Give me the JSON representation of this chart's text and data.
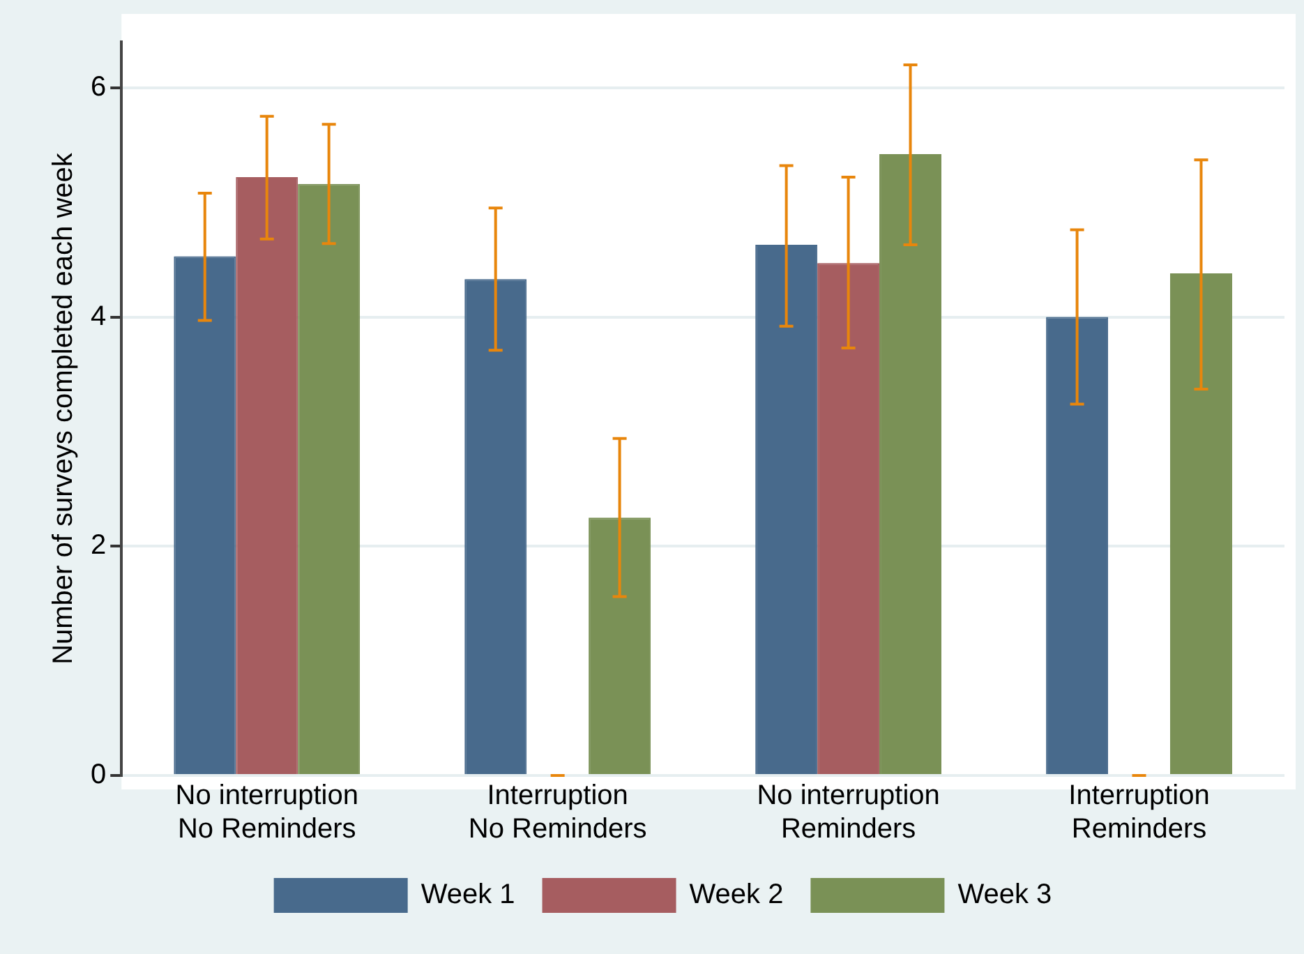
{
  "chart_data": {
    "type": "bar",
    "ylabel": "Number of surveys completed each week",
    "categories": [
      "No interruption\nNo Reminders",
      "Interruption\nNo Reminders",
      "No interruption\nReminders",
      "Interruption\nReminders"
    ],
    "series": [
      {
        "name": "Week 1",
        "color": "#486a8c",
        "values": [
          4.53,
          4.33,
          4.63,
          4.0
        ],
        "errors": [
          [
            3.97,
            5.08
          ],
          [
            3.71,
            4.95
          ],
          [
            3.92,
            5.32
          ],
          [
            3.24,
            4.76
          ]
        ]
      },
      {
        "name": "Week 2",
        "color": "#a65d60",
        "values": [
          5.22,
          0,
          4.47,
          0
        ],
        "errors": [
          [
            4.68,
            5.75
          ],
          [
            0,
            0
          ],
          [
            3.73,
            5.22
          ],
          [
            0,
            0
          ]
        ]
      },
      {
        "name": "Week 3",
        "color": "#7a9156",
        "values": [
          5.16,
          2.25,
          5.42,
          4.38
        ],
        "errors": [
          [
            4.64,
            5.68
          ],
          [
            1.56,
            2.94
          ],
          [
            4.63,
            6.2
          ],
          [
            3.37,
            5.37
          ]
        ]
      }
    ],
    "ylim": [
      0,
      6.4
    ],
    "yticks": [
      0,
      2,
      4,
      6
    ],
    "grid": "y",
    "legend": "bottom"
  }
}
